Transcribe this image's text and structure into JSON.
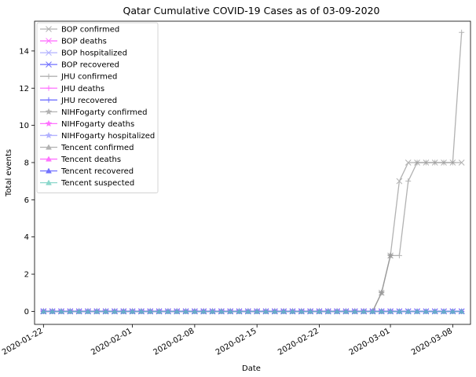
{
  "chart_data": {
    "type": "line",
    "title": "Qatar Cumulative COVID-19 Cases as of 03-09-2020",
    "xlabel": "Date",
    "ylabel": "Total events",
    "x_type": "date",
    "xlim": [
      "2020-01-21",
      "2020-03-10"
    ],
    "ylim": [
      -0.7,
      15.6
    ],
    "x_ticks": [
      "2020-01-22",
      "2020-02-01",
      "2020-02-08",
      "2020-02-15",
      "2020-02-22",
      "2020-03-01",
      "2020-03-08"
    ],
    "y_ticks": [
      0,
      2,
      4,
      6,
      8,
      10,
      12,
      14
    ],
    "grid": false,
    "legend_position": "top-left",
    "series": [
      {
        "name": "BOP confirmed",
        "color": "#999999",
        "marker": "x",
        "segments": [
          {
            "start": "2020-01-22",
            "values": [
              0,
              0,
              0,
              0,
              0,
              0,
              0,
              0,
              0,
              0,
              0,
              0,
              0,
              0,
              0,
              0,
              0,
              0,
              0,
              0,
              0,
              0,
              0,
              0,
              0,
              0,
              0,
              0,
              0,
              0,
              0,
              0,
              0,
              0,
              0,
              0,
              0,
              0,
              1,
              3,
              7,
              8,
              8,
              8,
              8,
              8,
              8,
              8
            ]
          }
        ]
      },
      {
        "name": "BOP deaths",
        "color": "#ff44ff",
        "marker": "x",
        "segments": [
          {
            "start": "2020-01-22",
            "values": [
              0,
              0,
              0,
              0,
              0,
              0,
              0,
              0,
              0,
              0,
              0,
              0,
              0,
              0,
              0,
              0,
              0,
              0,
              0,
              0,
              0,
              0,
              0,
              0,
              0,
              0,
              0,
              0,
              0,
              0,
              0,
              0,
              0,
              0,
              0,
              0,
              0,
              0,
              0,
              0,
              0,
              0,
              0,
              0,
              0,
              0,
              0,
              0
            ]
          }
        ]
      },
      {
        "name": "BOP hospitalized",
        "color": "#9999ff",
        "marker": "x",
        "segments": [
          {
            "start": "2020-01-22",
            "values": [
              0,
              0,
              0,
              0,
              0,
              0,
              0,
              0,
              0,
              0,
              0,
              0,
              0,
              0,
              0,
              0,
              0,
              0,
              0,
              0,
              0,
              0,
              0,
              0,
              0,
              0,
              0,
              0,
              0,
              0,
              0,
              0,
              0,
              0,
              0,
              0,
              0,
              0,
              0,
              0,
              0,
              0,
              0,
              0,
              0,
              0,
              0,
              0
            ]
          }
        ]
      },
      {
        "name": "BOP recovered",
        "color": "#4444ff",
        "marker": "x",
        "segments": [
          {
            "start": "2020-01-22",
            "values": [
              0,
              0,
              0,
              0,
              0,
              0,
              0,
              0,
              0,
              0,
              0,
              0,
              0,
              0,
              0,
              0,
              0,
              0,
              0,
              0,
              0,
              0,
              0,
              0,
              0,
              0,
              0,
              0,
              0,
              0,
              0,
              0,
              0,
              0,
              0,
              0,
              0,
              0,
              0,
              0,
              0,
              0,
              0,
              0,
              0,
              0,
              0,
              0
            ]
          }
        ]
      },
      {
        "name": "JHU confirmed",
        "color": "#999999",
        "marker": "+",
        "segments": [
          {
            "start": "2020-01-22",
            "values": [
              0,
              0,
              0,
              0,
              0,
              0,
              0,
              0,
              0,
              0,
              0,
              0,
              0,
              0,
              0,
              0,
              0,
              0,
              0,
              0,
              0,
              0,
              0,
              0,
              0,
              0,
              0,
              0,
              0,
              0,
              0,
              0,
              0,
              0,
              0,
              0,
              0,
              0,
              1,
              3,
              3,
              7,
              8,
              8,
              8,
              8,
              8,
              15
            ]
          }
        ]
      },
      {
        "name": "JHU deaths",
        "color": "#ff44ff",
        "marker": "+",
        "segments": [
          {
            "start": "2020-01-22",
            "values": [
              0,
              0,
              0,
              0,
              0,
              0,
              0,
              0,
              0,
              0,
              0,
              0,
              0,
              0,
              0,
              0,
              0,
              0,
              0,
              0,
              0,
              0,
              0,
              0,
              0,
              0,
              0,
              0,
              0,
              0,
              0,
              0,
              0,
              0,
              0,
              0,
              0,
              0,
              0,
              0,
              0,
              0,
              0,
              0,
              0,
              0,
              0,
              0
            ]
          }
        ]
      },
      {
        "name": "JHU recovered",
        "color": "#4444ff",
        "marker": "+",
        "segments": [
          {
            "start": "2020-01-22",
            "values": [
              0,
              0,
              0,
              0,
              0,
              0,
              0,
              0,
              0,
              0,
              0,
              0,
              0,
              0,
              0,
              0,
              0,
              0,
              0,
              0,
              0,
              0,
              0,
              0,
              0,
              0,
              0,
              0,
              0,
              0,
              0,
              0,
              0,
              0,
              0,
              0,
              0,
              0,
              0,
              0,
              0,
              0,
              0,
              0,
              0,
              0,
              0,
              0
            ]
          }
        ]
      },
      {
        "name": "NIHFogarty confirmed",
        "color": "#999999",
        "marker": "*",
        "segments": [
          {
            "start": "2020-01-22",
            "values": [
              0,
              0,
              0,
              0,
              0,
              0,
              0,
              0,
              0,
              0,
              0,
              0,
              0,
              0,
              0,
              0,
              0,
              0,
              0,
              0,
              0,
              0,
              0,
              0,
              0,
              0,
              0,
              0,
              0,
              0,
              0,
              0,
              0,
              0,
              0,
              0,
              0,
              0,
              1,
              3
            ]
          }
        ]
      },
      {
        "name": "NIHFogarty deaths",
        "color": "#ff44ff",
        "marker": "*",
        "segments": [
          {
            "start": "2020-01-22",
            "values": [
              0,
              0,
              0,
              0,
              0,
              0,
              0,
              0,
              0,
              0,
              0,
              0,
              0,
              0,
              0,
              0,
              0,
              0,
              0,
              0,
              0,
              0,
              0,
              0,
              0,
              0,
              0,
              0,
              0,
              0,
              0,
              0,
              0,
              0,
              0,
              0,
              0,
              0,
              0,
              0
            ]
          }
        ]
      },
      {
        "name": "NIHFogarty hospitalized",
        "color": "#9999ff",
        "marker": "*",
        "segments": [
          {
            "start": "2020-01-22",
            "values": [
              0,
              0,
              0,
              0,
              0,
              0,
              0,
              0,
              0,
              0,
              0,
              0,
              0,
              0,
              0,
              0,
              0,
              0,
              0,
              0,
              0,
              0,
              0,
              0,
              0,
              0,
              0,
              0,
              0,
              0,
              0,
              0,
              0,
              0,
              0,
              0,
              0,
              0,
              0,
              0
            ]
          }
        ]
      },
      {
        "name": "Tencent confirmed",
        "color": "#999999",
        "marker": "^",
        "segments": [
          {
            "start": "2020-01-22",
            "values": [
              0,
              0,
              0,
              0,
              0,
              0,
              0,
              0,
              0,
              0,
              0,
              0,
              0,
              0,
              0,
              0,
              0,
              0,
              0,
              0,
              0,
              0,
              0,
              0,
              0,
              0,
              0,
              0,
              0,
              0,
              0,
              0,
              0,
              0,
              0,
              0,
              0,
              0,
              0
            ]
          }
        ]
      },
      {
        "name": "Tencent deaths",
        "color": "#ff44ff",
        "marker": "^",
        "segments": [
          {
            "start": "2020-01-22",
            "values": [
              0,
              0,
              0,
              0,
              0,
              0,
              0,
              0,
              0,
              0,
              0,
              0,
              0,
              0,
              0,
              0,
              0,
              0,
              0,
              0,
              0,
              0,
              0,
              0,
              0,
              0,
              0,
              0,
              0,
              0,
              0,
              0,
              0,
              0,
              0,
              0,
              0,
              0,
              0,
              0,
              0,
              0,
              0,
              0,
              0,
              0,
              0,
              0
            ]
          }
        ]
      },
      {
        "name": "Tencent recovered",
        "color": "#4444ff",
        "marker": "^",
        "segments": [
          {
            "start": "2020-01-22",
            "values": [
              0,
              0,
              0,
              0,
              0,
              0,
              0,
              0,
              0,
              0,
              0,
              0,
              0,
              0,
              0,
              0,
              0,
              0,
              0,
              0,
              0,
              0,
              0,
              0,
              0,
              0,
              0,
              0,
              0,
              0,
              0,
              0,
              0,
              0,
              0,
              0,
              0,
              0,
              0,
              0,
              0,
              0,
              0,
              0,
              0,
              0,
              0,
              0
            ]
          }
        ]
      },
      {
        "name": "Tencent suspected",
        "color": "#66ccbb",
        "marker": "^",
        "segments": [
          {
            "start": "2020-01-22",
            "values": [
              0,
              0,
              0,
              0,
              0,
              0,
              0,
              0,
              0,
              0,
              0,
              0,
              0,
              0,
              0,
              0,
              0,
              0,
              0,
              0,
              0,
              0,
              0,
              0,
              0,
              0,
              0,
              0,
              0,
              0,
              0,
              0,
              0,
              0,
              0,
              0,
              0,
              0,
              0,
              0,
              0,
              0,
              0,
              0,
              0,
              0,
              0,
              0
            ]
          }
        ]
      }
    ]
  }
}
